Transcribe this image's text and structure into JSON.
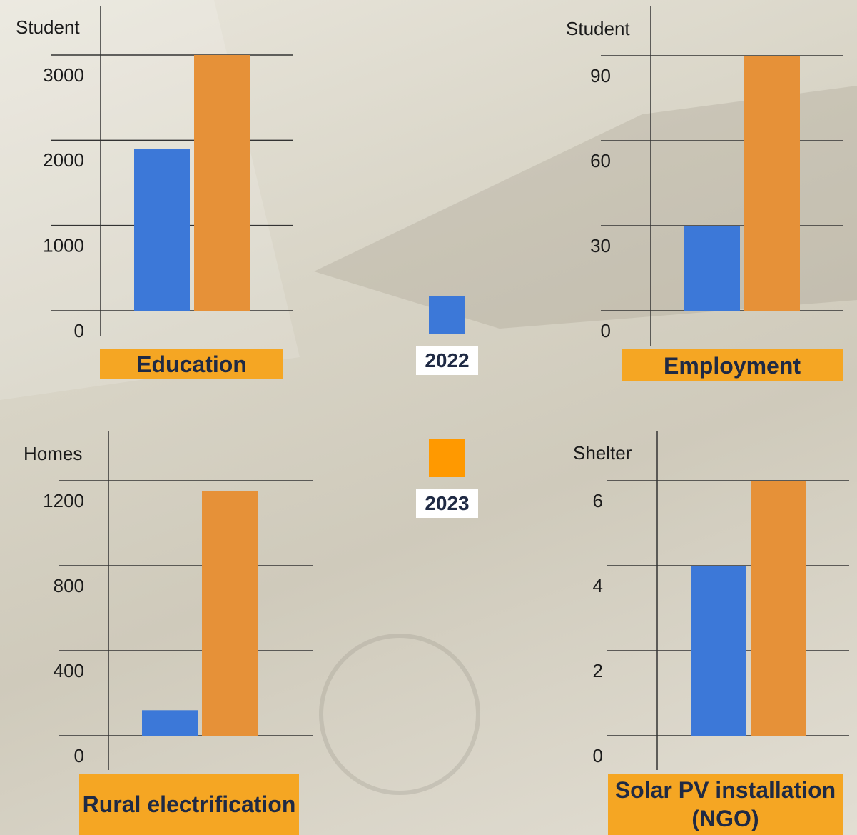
{
  "chart_data": [
    {
      "type": "bar",
      "y_label": "Student",
      "categories": [
        "Education"
      ],
      "series": [
        {
          "color": "#3c78d8",
          "values": [
            1900
          ]
        },
        {
          "color": "#e69138",
          "values": [
            3000
          ]
        }
      ],
      "ylim": [
        0,
        3000
      ],
      "yticks": [
        0,
        1000,
        2000,
        3000
      ],
      "grid": true
    },
    {
      "type": "bar",
      "y_label": "Student",
      "categories": [
        "Employment"
      ],
      "series": [
        {
          "color": "#3c78d8",
          "values": [
            30
          ]
        },
        {
          "color": "#e69138",
          "values": [
            90
          ]
        }
      ],
      "ylim": [
        0,
        90
      ],
      "yticks": [
        0,
        30,
        60,
        90
      ],
      "grid": true
    },
    {
      "type": "bar",
      "y_label": "Homes",
      "categories": [
        "Rural electrification"
      ],
      "series": [
        {
          "color": "#3c78d8",
          "values": [
            120
          ]
        },
        {
          "color": "#e69138",
          "values": [
            1150
          ]
        }
      ],
      "ylim": [
        0,
        1200
      ],
      "yticks": [
        0,
        400,
        800,
        1200
      ],
      "grid": true
    },
    {
      "type": "bar",
      "y_label": "Shelter",
      "categories": [
        "Solar PV installation (NGO)"
      ],
      "series": [
        {
          "color": "#3c78d8",
          "values": [
            4
          ]
        },
        {
          "color": "#e69138",
          "values": [
            6
          ]
        }
      ],
      "ylim": [
        0,
        6
      ],
      "yticks": [
        0,
        2,
        4,
        6
      ],
      "grid": true
    }
  ],
  "legend": {
    "items": [
      {
        "name": "2022",
        "color": "#3c78d8"
      },
      {
        "name": "2023",
        "color": "#ff9900"
      }
    ]
  }
}
